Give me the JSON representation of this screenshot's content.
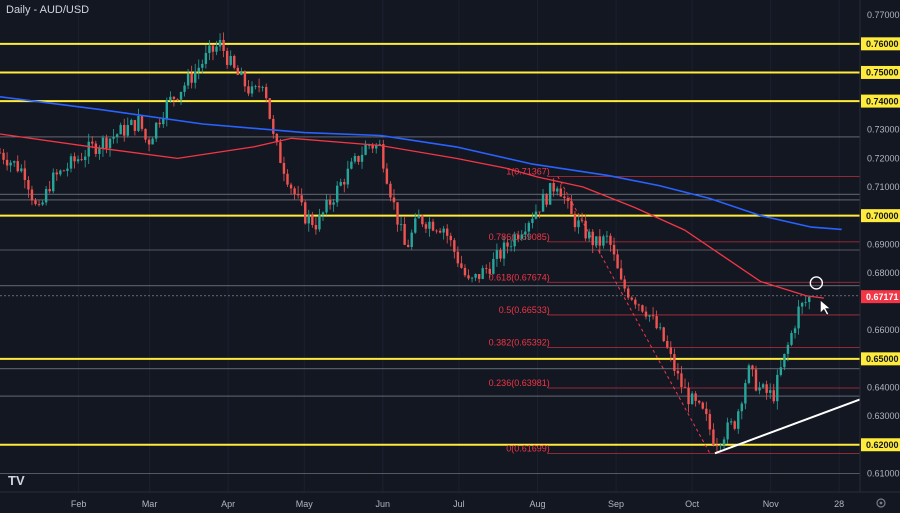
{
  "chart_data": {
    "type": "candlestick",
    "title": "Daily - AUD/USD",
    "ylim": [
      0.6035,
      0.7753
    ],
    "y_ticks": [
      "0.77000",
      "0.75000",
      "0.74000",
      "0.73000",
      "0.72000",
      "0.71000",
      "0.70000",
      "0.69000",
      "0.68000",
      "0.66000",
      "0.64000",
      "0.63000",
      "0.61000"
    ],
    "y_boxes": [
      "0.76000",
      "0.75000",
      "0.74000",
      "0.70000",
      "0.65000",
      "0.62000",
      "0.67171"
    ],
    "x_ticks": [
      "Feb",
      "Mar",
      "Apr",
      "May",
      "Jun",
      "Jul",
      "Aug",
      "Sep",
      "Oct",
      "Nov",
      "28"
    ],
    "x_tick_days": [
      31,
      59,
      90,
      120,
      151,
      181,
      212,
      243,
      273,
      304,
      331
    ],
    "day_range": [
      0,
      355
    ],
    "last_price": 0.67171,
    "horizontal_levels": [
      0.76,
      0.75,
      0.74,
      0.7,
      0.65,
      0.62
    ],
    "fib_levels": [
      {
        "label": "1(0.71367)",
        "value": 0.71367
      },
      {
        "label": "0.786(0.69085)",
        "value": 0.69085
      },
      {
        "label": "0.618(0.67674)",
        "value": 0.67674
      },
      {
        "label": "0.5(0.66533)",
        "value": 0.66533
      },
      {
        "label": "0.382(0.65392)",
        "value": 0.65392
      },
      {
        "label": "0.236(0.63981)",
        "value": 0.63981
      },
      {
        "label": "0(0.61699)",
        "value": 0.61699
      }
    ],
    "ma_200": [
      [
        0,
        0.7415
      ],
      [
        40,
        0.737
      ],
      [
        80,
        0.732
      ],
      [
        120,
        0.729
      ],
      [
        150,
        0.728
      ],
      [
        180,
        0.724
      ],
      [
        210,
        0.718
      ],
      [
        240,
        0.714
      ],
      [
        260,
        0.7105
      ],
      [
        280,
        0.706
      ],
      [
        300,
        0.7
      ],
      [
        320,
        0.696
      ],
      [
        332,
        0.6952
      ]
    ],
    "ma_100": [
      [
        0,
        0.7285
      ],
      [
        40,
        0.7235
      ],
      [
        70,
        0.72
      ],
      [
        100,
        0.724
      ],
      [
        115,
        0.727
      ],
      [
        150,
        0.7245
      ],
      [
        180,
        0.72
      ],
      [
        200,
        0.7165
      ],
      [
        212,
        0.7135
      ],
      [
        230,
        0.71
      ],
      [
        250,
        0.703
      ],
      [
        270,
        0.695
      ],
      [
        285,
        0.686
      ],
      [
        300,
        0.677
      ],
      [
        318,
        0.672
      ],
      [
        325,
        0.6712
      ]
    ],
    "trendline": [
      [
        282,
        0.617
      ],
      [
        355,
        0.641
      ]
    ],
    "fib_diagonal": [
      [
        220,
        0.7137
      ],
      [
        280,
        0.617
      ]
    ],
    "price_path": [
      [
        0,
        0.722
      ],
      [
        10,
        0.715
      ],
      [
        15,
        0.7
      ],
      [
        20,
        0.712
      ],
      [
        28,
        0.718
      ],
      [
        35,
        0.723
      ],
      [
        45,
        0.728
      ],
      [
        55,
        0.733
      ],
      [
        58,
        0.725
      ],
      [
        65,
        0.738
      ],
      [
        75,
        0.748
      ],
      [
        82,
        0.756
      ],
      [
        87,
        0.76
      ],
      [
        92,
        0.751
      ],
      [
        100,
        0.742
      ],
      [
        104,
        0.748
      ],
      [
        108,
        0.726
      ],
      [
        115,
        0.71
      ],
      [
        120,
        0.7
      ],
      [
        125,
        0.697
      ],
      [
        135,
        0.712
      ],
      [
        145,
        0.725
      ],
      [
        150,
        0.724
      ],
      [
        155,
        0.705
      ],
      [
        160,
        0.688
      ],
      [
        165,
        0.699
      ],
      [
        175,
        0.696
      ],
      [
        185,
        0.676
      ],
      [
        195,
        0.684
      ],
      [
        205,
        0.695
      ],
      [
        215,
        0.706
      ],
      [
        220,
        0.712
      ],
      [
        225,
        0.7
      ],
      [
        235,
        0.69
      ],
      [
        240,
        0.692
      ],
      [
        245,
        0.676
      ],
      [
        255,
        0.667
      ],
      [
        262,
        0.656
      ],
      [
        268,
        0.642
      ],
      [
        272,
        0.636
      ],
      [
        278,
        0.63
      ],
      [
        282,
        0.621
      ],
      [
        290,
        0.628
      ],
      [
        295,
        0.646
      ],
      [
        300,
        0.639
      ],
      [
        305,
        0.637
      ],
      [
        310,
        0.652
      ],
      [
        315,
        0.667
      ],
      [
        320,
        0.672
      ]
    ]
  },
  "watermark": "TV"
}
